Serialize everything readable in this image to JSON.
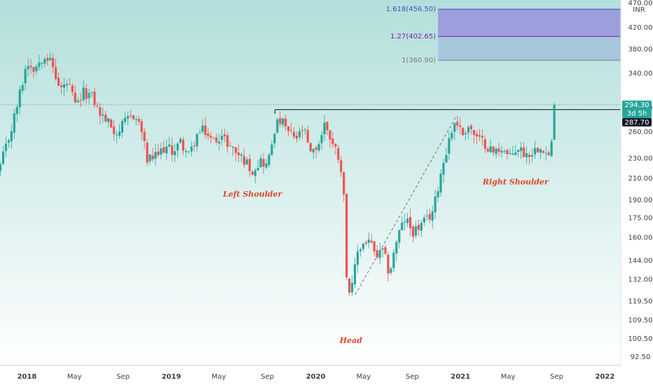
{
  "chart_data": {
    "type": "candlestick",
    "currency": "INR",
    "y_scale": "log",
    "ylim": [
      90,
      470
    ],
    "y_ticks": [
      "92.50",
      "100.50",
      "109.50",
      "119.50",
      "132.00",
      "144.00",
      "160.00",
      "175.00",
      "190.00",
      "210.00",
      "230.00",
      "260.00",
      "290.00",
      "340.00",
      "380.00",
      "420.00",
      "470.00"
    ],
    "x_labels": [
      {
        "label": "2018",
        "date": "2018-01-01",
        "bold": true
      },
      {
        "label": "May",
        "date": "2018-05-01",
        "bold": false
      },
      {
        "label": "Sep",
        "date": "2018-09-01",
        "bold": false
      },
      {
        "label": "2019",
        "date": "2019-01-01",
        "bold": true
      },
      {
        "label": "May",
        "date": "2019-05-01",
        "bold": false
      },
      {
        "label": "Sep",
        "date": "2019-09-01",
        "bold": false
      },
      {
        "label": "2020",
        "date": "2020-01-01",
        "bold": true
      },
      {
        "label": "May",
        "date": "2020-05-01",
        "bold": false
      },
      {
        "label": "Sep",
        "date": "2020-09-01",
        "bold": false
      },
      {
        "label": "2021",
        "date": "2021-01-01",
        "bold": true
      },
      {
        "label": "May",
        "date": "2021-05-01",
        "bold": false
      },
      {
        "label": "Sep",
        "date": "2021-09-01",
        "bold": false
      },
      {
        "label": "2022",
        "date": "2022-01-01",
        "bold": true
      }
    ],
    "xlim": [
      "2017-10-25",
      "2022-02-10"
    ],
    "close_path": [
      [
        "2017-10-26",
        222
      ],
      [
        "2017-11-20",
        258
      ],
      [
        "2017-12-10",
        300
      ],
      [
        "2018-01-01",
        358
      ],
      [
        "2018-01-20",
        348
      ],
      [
        "2018-02-15",
        372
      ],
      [
        "2018-03-05",
        355
      ],
      [
        "2018-03-25",
        315
      ],
      [
        "2018-04-15",
        325
      ],
      [
        "2018-05-05",
        290
      ],
      [
        "2018-05-25",
        312
      ],
      [
        "2018-06-15",
        305
      ],
      [
        "2018-07-05",
        282
      ],
      [
        "2018-07-25",
        272
      ],
      [
        "2018-08-15",
        258
      ],
      [
        "2018-09-05",
        270
      ],
      [
        "2018-09-25",
        282
      ],
      [
        "2018-10-15",
        268
      ],
      [
        "2018-11-01",
        228
      ],
      [
        "2018-11-25",
        232
      ],
      [
        "2018-12-15",
        242
      ],
      [
        "2019-01-05",
        238
      ],
      [
        "2019-01-25",
        248
      ],
      [
        "2019-02-15",
        232
      ],
      [
        "2019-03-05",
        255
      ],
      [
        "2019-03-25",
        262
      ],
      [
        "2019-04-15",
        248
      ],
      [
        "2019-05-05",
        256
      ],
      [
        "2019-05-25",
        246
      ],
      [
        "2019-06-15",
        236
      ],
      [
        "2019-07-05",
        228
      ],
      [
        "2019-07-25",
        218
      ],
      [
        "2019-08-15",
        228
      ],
      [
        "2019-09-01",
        222
      ],
      [
        "2019-09-20",
        266
      ],
      [
        "2019-10-05",
        274
      ],
      [
        "2019-10-25",
        258
      ],
      [
        "2019-11-15",
        252
      ],
      [
        "2019-12-01",
        264
      ],
      [
        "2019-12-20",
        232
      ],
      [
        "2020-01-10",
        248
      ],
      [
        "2020-01-25",
        272
      ],
      [
        "2020-02-10",
        248
      ],
      [
        "2020-02-25",
        236
      ],
      [
        "2020-03-10",
        212
      ],
      [
        "2020-03-20",
        130
      ],
      [
        "2020-03-30",
        122
      ],
      [
        "2020-04-15",
        150
      ],
      [
        "2020-05-01",
        156
      ],
      [
        "2020-05-15",
        158
      ],
      [
        "2020-06-01",
        146
      ],
      [
        "2020-06-20",
        150
      ],
      [
        "2020-07-05",
        135
      ],
      [
        "2020-07-25",
        160
      ],
      [
        "2020-08-15",
        175
      ],
      [
        "2020-09-01",
        164
      ],
      [
        "2020-09-20",
        168
      ],
      [
        "2020-10-10",
        174
      ],
      [
        "2020-10-25",
        182
      ],
      [
        "2020-11-10",
        212
      ],
      [
        "2020-12-01",
        248
      ],
      [
        "2020-12-20",
        276
      ],
      [
        "2021-01-05",
        256
      ],
      [
        "2021-01-20",
        268
      ],
      [
        "2021-02-10",
        252
      ],
      [
        "2021-03-05",
        246
      ],
      [
        "2021-03-25",
        236
      ],
      [
        "2021-04-15",
        242
      ],
      [
        "2021-05-05",
        230
      ],
      [
        "2021-05-25",
        242
      ],
      [
        "2021-06-15",
        234
      ],
      [
        "2021-07-05",
        238
      ],
      [
        "2021-07-25",
        246
      ],
      [
        "2021-08-10",
        230
      ],
      [
        "2021-08-20",
        248
      ],
      [
        "2021-09-01",
        294.3
      ]
    ],
    "candle_interval_days": 7,
    "annotations": [
      {
        "text": "Left Shoulder",
        "date": "2019-07-25",
        "price": 193
      },
      {
        "text": "Head",
        "date": "2020-03-30",
        "price": 98.5
      },
      {
        "text": "Right Shoulder",
        "date": "2021-05-20",
        "price": 204
      }
    ],
    "neckline": {
      "from_date": "2019-09-20",
      "to_date": "2022-01-20",
      "price": 287.7
    },
    "trend_line": {
      "from": [
        "2020-04-10",
        123
      ],
      "to": [
        "2020-12-20",
        278
      ]
    },
    "fib_levels": [
      {
        "label": "1.618(456.50)",
        "price": 456.5,
        "color": "#3f51b5"
      },
      {
        "label": "1.27(402.65)",
        "price": 402.65,
        "color": "#7b1fa2"
      },
      {
        "label": "1(360.90)",
        "price": 360.9,
        "color": "#787b86"
      }
    ],
    "fib_zone": {
      "from_date": "2020-11-05",
      "to_date": "2022-02-10"
    },
    "last_price": "294.30",
    "time_left": "3d 5h",
    "neckline_price": "287.70",
    "colors": {
      "up": "#26a69a",
      "down": "#ef5350",
      "bg_top": "#b2dfdb",
      "bg_bottom": "#ffffff",
      "zone_upper": "#9c9fdc",
      "zone_lower": "#a6c7dc",
      "annotation": "#e0452e"
    }
  }
}
